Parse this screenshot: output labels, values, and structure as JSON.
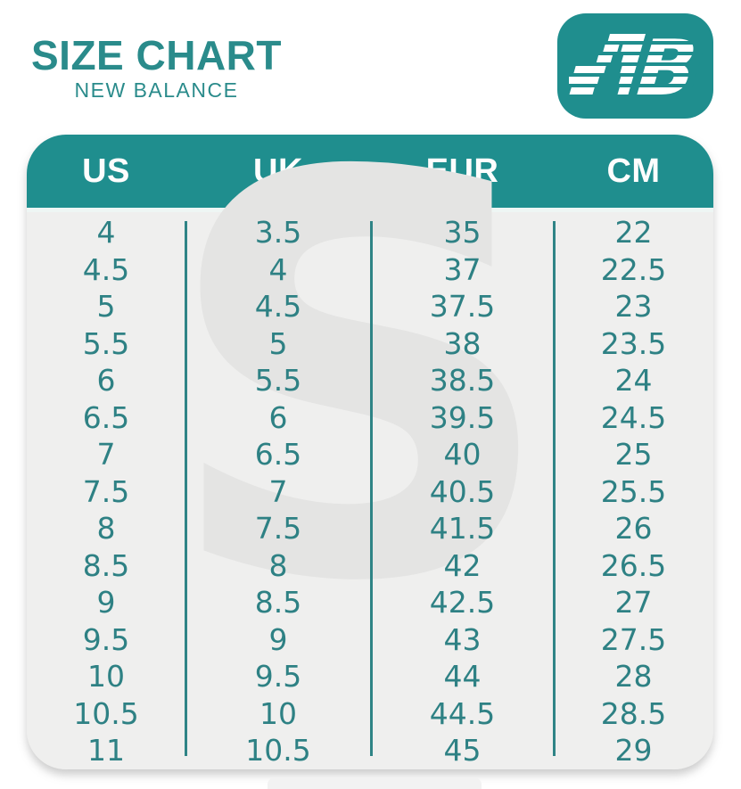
{
  "header": {
    "title": "SIZE CHART",
    "subtitle": "NEW BALANCE",
    "logo_text": "NB"
  },
  "colors": {
    "teal_header": "#1f8e8e",
    "teal_text": "#2e8184",
    "title_teal": "#2a8b8b",
    "table_body_gray": "#efefee",
    "watermark_gray": "#e4e4e3",
    "header_label_white": "#fdfdfd"
  },
  "watermark": {
    "letter": "S"
  },
  "table": {
    "columns": [
      "US",
      "UK",
      "EUR",
      "CM"
    ],
    "rows": [
      [
        "4",
        "3.5",
        "35",
        "22"
      ],
      [
        "4.5",
        "4",
        "37",
        "22.5"
      ],
      [
        "5",
        "4.5",
        "37.5",
        "23"
      ],
      [
        "5.5",
        "5",
        "38",
        "23.5"
      ],
      [
        "6",
        "5.5",
        "38.5",
        "24"
      ],
      [
        "6.5",
        "6",
        "39.5",
        "24.5"
      ],
      [
        "7",
        "6.5",
        "40",
        "25"
      ],
      [
        "7.5",
        "7",
        "40.5",
        "25.5"
      ],
      [
        "8",
        "7.5",
        "41.5",
        "26"
      ],
      [
        "8.5",
        "8",
        "42",
        "26.5"
      ],
      [
        "9",
        "8.5",
        "42.5",
        "27"
      ],
      [
        "9.5",
        "9",
        "43",
        "27.5"
      ],
      [
        "10",
        "9.5",
        "44",
        "28"
      ],
      [
        "10.5",
        "10",
        "44.5",
        "28.5"
      ],
      [
        "11",
        "10.5",
        "45",
        "29"
      ]
    ]
  }
}
